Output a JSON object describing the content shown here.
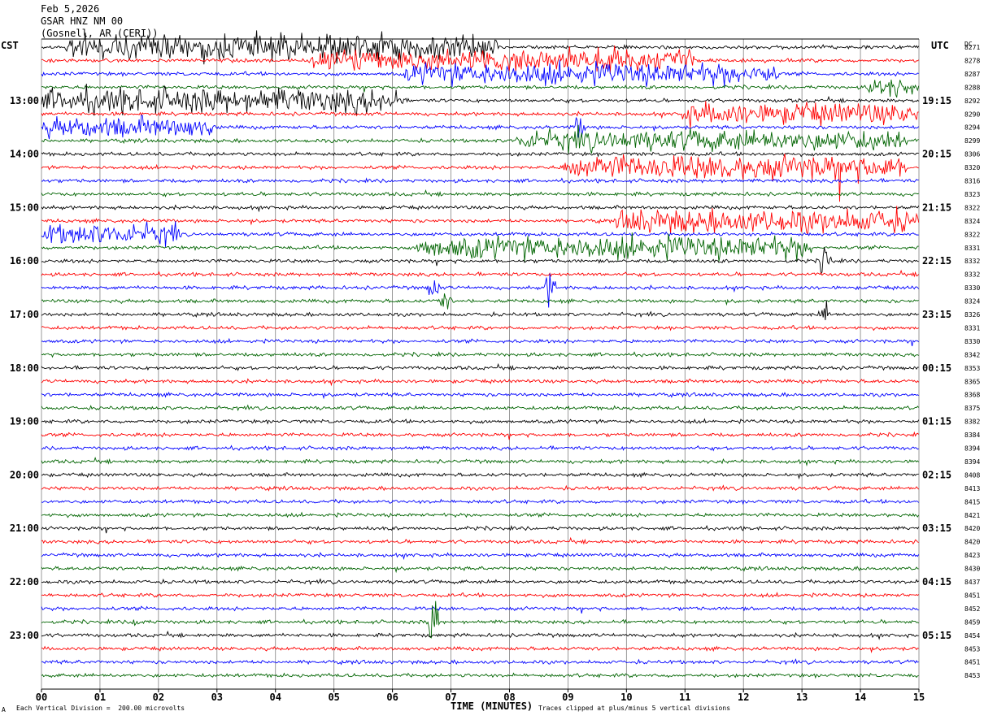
{
  "header": {
    "date": "Feb 5,2026",
    "station": "GSAR HNZ NM 00",
    "location": "(Gosnell, AR (CERI))"
  },
  "left_timezone": "CST",
  "right_timezone": "UTC",
  "dc_label": "DC",
  "footer": {
    "corner_mark": "A",
    "scale_note": "Each Vertical Division =  200.00 microvolts",
    "xlabel": "TIME (MINUTES)",
    "clip_note": "Traces clipped at plus/minus 5 vertical divisions"
  },
  "colors": {
    "black": "#000000",
    "red": "#ff0000",
    "blue": "#0000ff",
    "green": "#006400",
    "grid": "#808080"
  },
  "chart_data": {
    "type": "line",
    "description_kind": "helicorder",
    "xlim": [
      0,
      15
    ],
    "x_ticks": [
      "00",
      "01",
      "02",
      "03",
      "04",
      "05",
      "06",
      "07",
      "08",
      "09",
      "10",
      "11",
      "12",
      "13",
      "14",
      "15"
    ],
    "color_cycle": [
      "black",
      "red",
      "blue",
      "green"
    ],
    "left_hour_labels": [
      "13:00",
      "14:00",
      "15:00",
      "16:00",
      "17:00",
      "18:00",
      "19:00",
      "20:00",
      "21:00",
      "22:00",
      "23:00"
    ],
    "right_hour_labels": [
      "19:15",
      "20:15",
      "21:15",
      "22:15",
      "23:15",
      "00:15",
      "01:15",
      "02:15",
      "03:15",
      "04:15",
      "05:15"
    ],
    "dc_offsets": [
      "8271",
      "8278",
      "8287",
      "8288",
      "8292",
      "8290",
      "8294",
      "8299",
      "8306",
      "8320",
      "8316",
      "8323",
      "8322",
      "8324",
      "8322",
      "8331",
      "8332",
      "8332",
      "8330",
      "8324",
      "8326",
      "8331",
      "8330",
      "8342",
      "8353",
      "8365",
      "8368",
      "8375",
      "8382",
      "8384",
      "8394",
      "8394",
      "8408",
      "8413",
      "8415",
      "8421",
      "8420",
      "8420",
      "8423",
      "8430",
      "8437",
      "8451",
      "8452",
      "8459",
      "8454",
      "8453",
      "8451",
      "8453"
    ],
    "noise_bursts": [
      {
        "trace": 0,
        "start": 0.4,
        "end": 7.8,
        "level": 3.2
      },
      {
        "trace": 1,
        "start": 4.6,
        "end": 11.2,
        "level": 2.8
      },
      {
        "trace": 2,
        "start": 6.2,
        "end": 12.6,
        "level": 2.6
      },
      {
        "trace": 3,
        "start": 14.1,
        "end": 15,
        "level": 2.6
      },
      {
        "trace": 4,
        "start": 0,
        "end": 6.2,
        "level": 3.0
      },
      {
        "trace": 5,
        "start": 10.9,
        "end": 15,
        "level": 2.6
      },
      {
        "trace": 6,
        "start": 0,
        "end": 3.0,
        "level": 2.4
      },
      {
        "trace": 7,
        "start": 8.1,
        "end": 14.8,
        "level": 2.4
      },
      {
        "trace": 9,
        "start": 8.9,
        "end": 14.8,
        "level": 3.0
      },
      {
        "trace": 13,
        "start": 9.8,
        "end": 15,
        "level": 2.8
      },
      {
        "trace": 14,
        "start": 0,
        "end": 2.4,
        "level": 2.4
      },
      {
        "trace": 15,
        "start": 6.4,
        "end": 13.2,
        "level": 2.8
      }
    ],
    "events": [
      {
        "trace": 6,
        "x": 9.2,
        "amp": 4.0
      },
      {
        "trace": 16,
        "x": 13.4,
        "amp": 6.0
      },
      {
        "trace": 18,
        "x": 6.7,
        "amp": 3.5
      },
      {
        "trace": 18,
        "x": 8.7,
        "amp": 5.0
      },
      {
        "trace": 19,
        "x": 6.9,
        "amp": 3.0
      },
      {
        "trace": 20,
        "x": 13.4,
        "amp": 3.0
      },
      {
        "trace": 43,
        "x": 6.7,
        "amp": 8.0
      },
      {
        "trace": 43,
        "x": 1.65,
        "amp": 2.0
      }
    ]
  }
}
